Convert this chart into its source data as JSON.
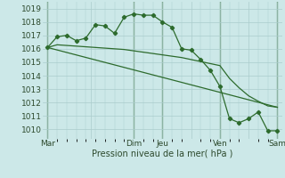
{
  "background_color": "#cce8e8",
  "grid_color": "#aacccc",
  "line_color": "#2d6b2d",
  "xlabel": "Pression niveau de la mer( hPa )",
  "ylim": [
    1009.3,
    1019.5
  ],
  "yticks": [
    1010,
    1011,
    1012,
    1013,
    1014,
    1015,
    1016,
    1017,
    1018,
    1019
  ],
  "xtick_labels": [
    "Mar",
    "",
    "Dim",
    "Jeu",
    "",
    "Ven",
    "",
    "Sam"
  ],
  "xtick_positions": [
    0,
    4.5,
    9,
    12,
    15,
    18,
    21,
    24
  ],
  "vline_positions": [
    0,
    9,
    12,
    18,
    24
  ],
  "n_points": 25,
  "line1_x": [
    0,
    1,
    2,
    3,
    4,
    5,
    6,
    7,
    8,
    9,
    10,
    11,
    12,
    13,
    14,
    15,
    16,
    17,
    18,
    19,
    20,
    21,
    22,
    23,
    24
  ],
  "line1_y": [
    1016.1,
    1016.9,
    1017.0,
    1016.6,
    1016.8,
    1017.8,
    1017.7,
    1017.15,
    1018.35,
    1018.6,
    1018.5,
    1018.5,
    1018.0,
    1017.6,
    1016.0,
    1015.9,
    1015.2,
    1014.4,
    1013.2,
    1010.8,
    1010.5,
    1010.8,
    1011.3,
    1009.9,
    1009.9
  ],
  "line2_x": [
    0,
    1,
    2,
    3,
    4,
    5,
    6,
    7,
    8,
    9,
    10,
    11,
    12,
    13,
    14,
    15,
    16,
    17,
    18,
    19,
    20,
    21,
    22,
    23,
    24
  ],
  "line2_y": [
    1016.1,
    1016.3,
    1016.25,
    1016.2,
    1016.15,
    1016.1,
    1016.05,
    1016.0,
    1015.95,
    1015.85,
    1015.75,
    1015.65,
    1015.55,
    1015.45,
    1015.35,
    1015.2,
    1015.05,
    1014.9,
    1014.75,
    1013.8,
    1013.1,
    1012.5,
    1012.1,
    1011.75,
    1011.65
  ],
  "line3_x": [
    0,
    24
  ],
  "line3_y": [
    1016.1,
    1011.65
  ]
}
